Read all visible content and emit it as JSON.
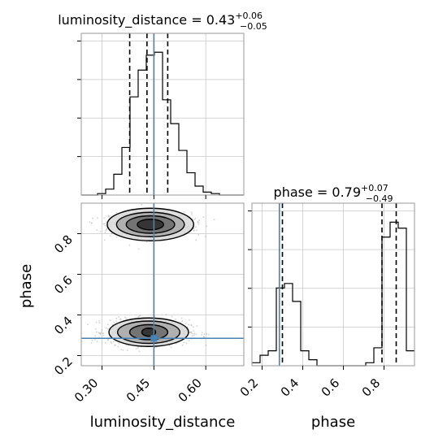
{
  "chart_data": [
    {
      "id": "hist-luminosity-distance",
      "type": "histogram",
      "title": {
        "param": "luminosity_distance",
        "median": "0.43",
        "plus": "+0.06",
        "minus": "−0.05"
      },
      "xlim": [
        0.24,
        0.71
      ],
      "bins": {
        "edges": [
          0.24,
          0.2635,
          0.287,
          0.3105,
          0.334,
          0.3575,
          0.381,
          0.4045,
          0.428,
          0.4515,
          0.475,
          0.4985,
          0.522,
          0.5455,
          0.569,
          0.5925,
          0.616,
          0.6395,
          0.663,
          0.6865,
          0.71
        ],
        "counts": [
          0,
          0,
          0.01,
          0.04,
          0.14,
          0.32,
          0.66,
          0.84,
          0.94,
          0.96,
          0.64,
          0.48,
          0.3,
          0.15,
          0.06,
          0.02,
          0.01,
          0,
          0,
          0
        ]
      },
      "quantiles": [
        0.38,
        0.43,
        0.49
      ],
      "truth": 0.45,
      "grid": true
    },
    {
      "id": "scatter-2d",
      "type": "scatter",
      "xlabel": "luminosity_distance",
      "ylabel": "phase",
      "xlim": [
        0.24,
        0.71
      ],
      "ylim": [
        0.15,
        0.95
      ],
      "xticks": [
        "0.30",
        "0.45",
        "0.60"
      ],
      "xtick_values": [
        0.3,
        0.45,
        0.6
      ],
      "yticks": [
        "0.2",
        "0.4",
        "0.6",
        "0.8"
      ],
      "ytick_values": [
        0.2,
        0.4,
        0.6,
        0.8
      ],
      "clusters": [
        {
          "cx": 0.44,
          "cy": 0.845,
          "sx": 0.045,
          "sy": 0.025,
          "rings": [
            [
              0.125,
              0.08
            ],
            [
              0.098,
              0.06
            ],
            [
              0.07,
              0.043
            ],
            [
              0.038,
              0.026
            ]
          ],
          "n": 1000
        },
        {
          "cx": 0.435,
          "cy": 0.315,
          "sx": 0.045,
          "sy": 0.025,
          "rings": [
            [
              0.115,
              0.07
            ],
            [
              0.09,
              0.055
            ],
            [
              0.055,
              0.037
            ],
            [
              0.02,
              0.02
            ]
          ],
          "n": 1000
        }
      ],
      "truth": {
        "x": 0.45,
        "y": 0.285
      },
      "grid": true
    },
    {
      "id": "hist-phase",
      "type": "histogram",
      "title": {
        "param": "phase",
        "median": "0.79",
        "plus": "+0.07",
        "minus": "−0.49"
      },
      "xlabel": "phase",
      "xlim": [
        0.15,
        0.95
      ],
      "xticks": [
        "0.2",
        "0.4",
        "0.6",
        "0.8"
      ],
      "xtick_values": [
        0.2,
        0.4,
        0.6,
        0.8
      ],
      "bins": {
        "edges": [
          0.15,
          0.19,
          0.23,
          0.27,
          0.31,
          0.35,
          0.39,
          0.43,
          0.47,
          0.51,
          0.55,
          0.59,
          0.63,
          0.67,
          0.71,
          0.75,
          0.79,
          0.83,
          0.87,
          0.91,
          0.95
        ],
        "counts": [
          0.02,
          0.07,
          0.1,
          0.52,
          0.55,
          0.43,
          0.1,
          0.04,
          0,
          0,
          0,
          0,
          0,
          0,
          0.02,
          0.12,
          0.86,
          0.96,
          0.92,
          0.1
        ]
      },
      "quantiles": [
        0.3,
        0.79,
        0.86
      ],
      "truth": 0.285,
      "grid": true
    }
  ],
  "colors": {
    "truth": "#4682b4",
    "hist": "#000000",
    "grid": "#c8c8c8",
    "points": "#9a9a9a",
    "density": "#000000"
  }
}
